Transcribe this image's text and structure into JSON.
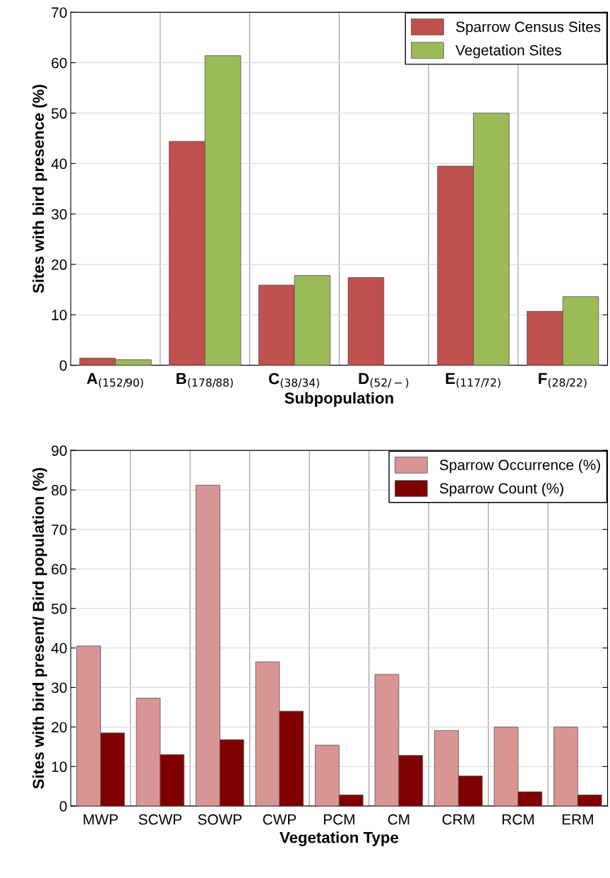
{
  "chart_data": [
    {
      "type": "bar",
      "xlabel": "Subpopulation",
      "ylabel": "Sites with bird presence (%)",
      "categories": [
        "A$_{(152/90)}$",
        "B$_{(178/88)}$",
        "C$_{(38/34)}$",
        "D$_{(52/−)}$",
        "E$_{(117/72)}$",
        "F$_{(28/22)}$"
      ],
      "series": [
        {
          "name": "Sparrow Census Sites",
          "color": "#c0504d",
          "values": [
            1.4,
            44.4,
            15.9,
            17.4,
            39.5,
            10.7
          ]
        },
        {
          "name": "Vegetation Sites",
          "color": "#9bbb59",
          "values": [
            1.1,
            61.4,
            17.8,
            null,
            50.0,
            13.6
          ]
        }
      ],
      "ylim": [
        0,
        70
      ],
      "yticks": [
        0,
        10,
        20,
        30,
        40,
        50,
        60,
        70
      ],
      "grid": true,
      "legend": "top right"
    },
    {
      "type": "bar",
      "xlabel": "Vegetation Type",
      "ylabel": "Sites with bird present/ Bird population (%)",
      "categories": [
        "MWP",
        "SCWP",
        "SOWP",
        "CWP",
        "PCM",
        "CM",
        "CRM",
        "RCM",
        "ERM"
      ],
      "series": [
        {
          "name": "Sparrow Occurrence (%)",
          "color": "#d99594",
          "values": [
            40.5,
            27.3,
            81.2,
            36.5,
            15.4,
            33.3,
            19.1,
            20.0,
            20.0
          ]
        },
        {
          "name": "Sparrow Count (%)",
          "color": "#800000",
          "values": [
            18.5,
            13.0,
            16.8,
            24.0,
            2.8,
            12.8,
            7.6,
            3.6,
            2.8
          ]
        }
      ],
      "ylim": [
        0,
        90
      ],
      "yticks": [
        0,
        10,
        20,
        30,
        40,
        50,
        60,
        70,
        80,
        90
      ],
      "grid": true,
      "legend": "top right"
    }
  ]
}
